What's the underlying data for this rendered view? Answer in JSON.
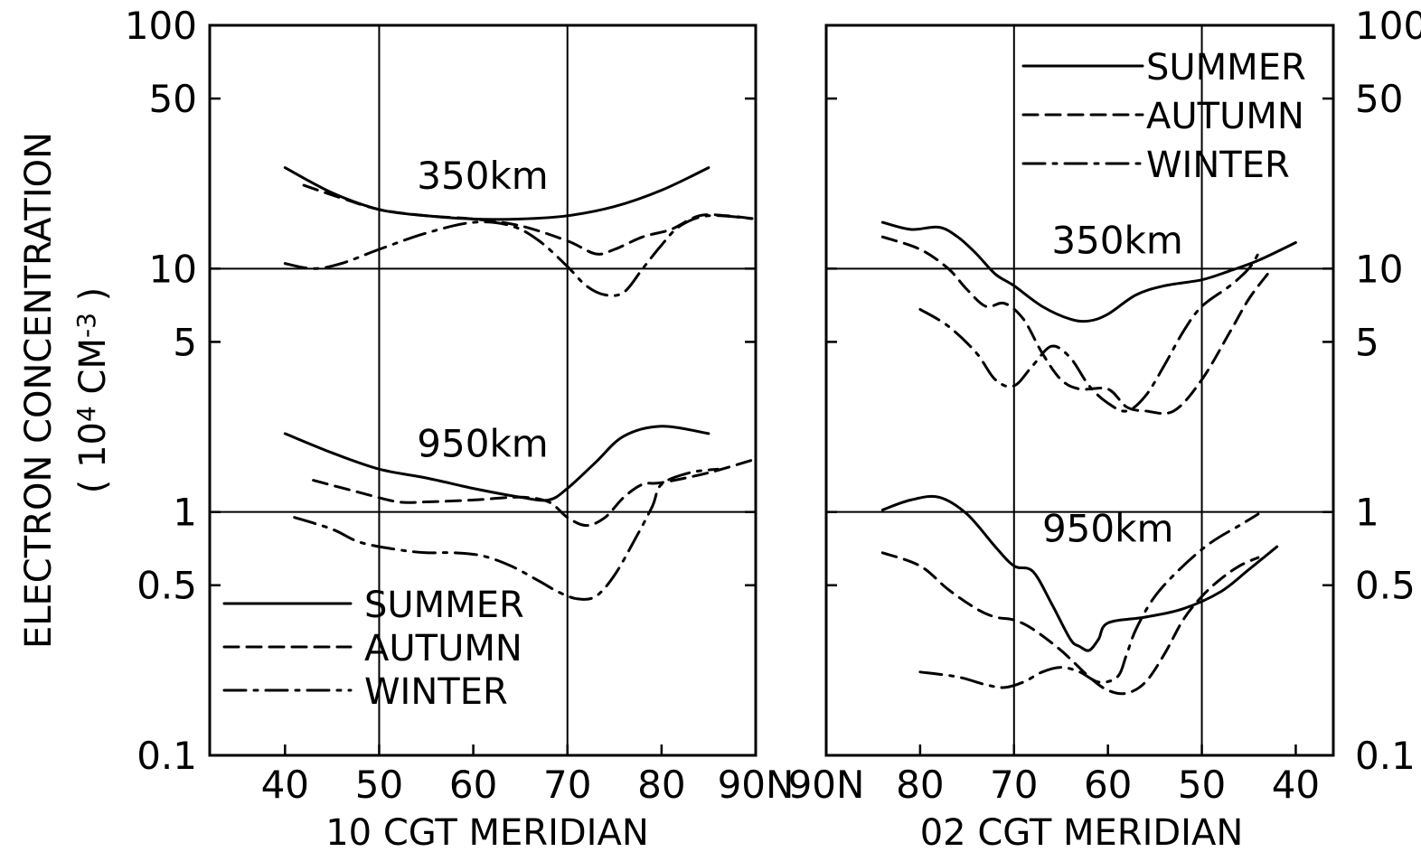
{
  "y_axis_title": [
    "ELECTRON CONCENTRATION",
    "( 10",
    "4",
    " CM",
    "-3",
    " )"
  ],
  "y_ticks": [
    {
      "value": 100,
      "label": "100"
    },
    {
      "value": 50,
      "label": "50"
    },
    {
      "value": 10,
      "label": "10"
    },
    {
      "value": 5,
      "label": "5"
    },
    {
      "value": 1,
      "label": "1"
    },
    {
      "value": 0.5,
      "label": "0.5"
    },
    {
      "value": 0.1,
      "label": "0.1"
    }
  ],
  "series_styles": [
    {
      "name": "SUMMER",
      "dash": "solid"
    },
    {
      "name": "AUTUMN",
      "dash": "dashed"
    },
    {
      "name": "WINTER",
      "dash": "dashdot"
    }
  ],
  "chart_data": [
    {
      "type": "line",
      "xlabel": "10 CGT MERIDIAN",
      "ylabel": "ELECTRON CONCENTRATION (10^4 CM^-3)",
      "yscale": "log",
      "ylim": [
        0.1,
        100
      ],
      "xlim": [
        32,
        90
      ],
      "x_direction": "increasing",
      "x_ticks": [
        {
          "value": 40,
          "label": "40"
        },
        {
          "value": 50,
          "label": "50"
        },
        {
          "value": 60,
          "label": "60"
        },
        {
          "value": 70,
          "label": "70"
        },
        {
          "value": 80,
          "label": "80"
        },
        {
          "value": 90,
          "label": "90N"
        }
      ],
      "vertical_grid": [
        50,
        70
      ],
      "horizontal_grid": [
        10,
        1
      ],
      "legend": {
        "position": "bottom-left",
        "entries": [
          "SUMMER",
          "AUTUMN",
          "WINTER"
        ]
      },
      "annotations": [
        {
          "text": "350km",
          "x": 61,
          "y": 24
        },
        {
          "text": "950km",
          "x": 61,
          "y": 1.9
        }
      ],
      "series": [
        {
          "name": "SUMMER",
          "group": "350km",
          "x": [
            40,
            45,
            50,
            55,
            60,
            65,
            70,
            75,
            80,
            85
          ],
          "y": [
            26,
            20.5,
            17.5,
            16.5,
            16,
            16,
            16.5,
            18,
            21,
            26
          ]
        },
        {
          "name": "AUTUMN",
          "group": "350km",
          "x": [
            42,
            46,
            50,
            55,
            60,
            65,
            70,
            73,
            75,
            78,
            81,
            84,
            87,
            90
          ],
          "y": [
            22,
            19.5,
            17.5,
            16.5,
            16,
            15,
            13,
            11.5,
            12,
            13.5,
            14.5,
            16.5,
            16.5,
            16
          ]
        },
        {
          "name": "WINTER",
          "group": "350km",
          "x": [
            40,
            43,
            46,
            50,
            55,
            60,
            64,
            67,
            70,
            72,
            74,
            76,
            78,
            80,
            82,
            85,
            90
          ],
          "y": [
            10.5,
            10,
            10.5,
            12,
            14,
            15.5,
            15,
            13,
            10.2,
            8.5,
            7.8,
            8,
            10,
            12.5,
            15,
            16.5,
            16
          ]
        },
        {
          "name": "SUMMER",
          "group": "950km",
          "x": [
            40,
            45,
            50,
            55,
            60,
            65,
            68,
            70,
            73,
            76,
            80,
            85
          ],
          "y": [
            2.1,
            1.75,
            1.5,
            1.38,
            1.25,
            1.15,
            1.12,
            1.25,
            1.6,
            2.05,
            2.25,
            2.1
          ]
        },
        {
          "name": "AUTUMN",
          "group": "950km",
          "x": [
            43,
            48,
            52,
            55,
            60,
            65,
            68,
            70,
            72,
            74,
            76,
            78,
            80,
            85,
            90
          ],
          "y": [
            1.35,
            1.2,
            1.1,
            1.1,
            1.12,
            1.15,
            1.1,
            0.95,
            0.88,
            0.95,
            1.15,
            1.3,
            1.32,
            1.45,
            1.65
          ]
        },
        {
          "name": "WINTER",
          "group": "950km",
          "x": [
            41,
            45,
            48,
            52,
            55,
            58,
            61,
            64,
            67,
            69,
            71,
            73,
            75,
            77,
            79,
            80,
            83,
            86
          ],
          "y": [
            0.95,
            0.85,
            0.75,
            0.7,
            0.68,
            0.68,
            0.66,
            0.6,
            0.52,
            0.47,
            0.44,
            0.45,
            0.55,
            0.75,
            1.05,
            1.3,
            1.45,
            1.5
          ]
        }
      ]
    },
    {
      "type": "line",
      "xlabel": "02 CGT MERIDIAN",
      "ylabel": "ELECTRON CONCENTRATION (10^4 CM^-3)",
      "yscale": "log",
      "ylim": [
        0.1,
        100
      ],
      "xlim": [
        90,
        36
      ],
      "x_direction": "decreasing",
      "x_ticks": [
        {
          "value": 90,
          "label": "90N"
        },
        {
          "value": 80,
          "label": "80"
        },
        {
          "value": 70,
          "label": "70"
        },
        {
          "value": 60,
          "label": "60"
        },
        {
          "value": 50,
          "label": "50"
        },
        {
          "value": 40,
          "label": "40"
        }
      ],
      "vertical_grid": [
        70,
        50
      ],
      "horizontal_grid": [
        10,
        1
      ],
      "legend": {
        "position": "top-right",
        "entries": [
          "SUMMER",
          "AUTUMN",
          "WINTER"
        ]
      },
      "annotations": [
        {
          "text": "350km",
          "x": 59,
          "y": 13
        },
        {
          "text": "950km",
          "x": 60,
          "y": 0.85
        }
      ],
      "series": [
        {
          "name": "SUMMER",
          "group": "350km",
          "x": [
            84,
            81,
            78,
            76,
            74,
            72,
            70,
            67,
            64,
            62,
            60,
            57,
            54,
            50,
            47,
            44,
            40
          ],
          "y": [
            15.5,
            14.5,
            14.8,
            13.5,
            11.5,
            9.5,
            8.5,
            7,
            6.2,
            6.1,
            6.5,
            7.8,
            8.5,
            9,
            9.8,
            10.8,
            12.8
          ]
        },
        {
          "name": "AUTUMN",
          "group": "350km",
          "x": [
            84,
            80,
            77,
            75,
            73,
            71,
            69,
            67,
            65,
            63,
            60,
            58,
            56,
            53,
            50,
            47,
            45,
            43
          ],
          "y": [
            13.5,
            12,
            10,
            8.2,
            7,
            7.2,
            6.2,
            4.5,
            3.5,
            3.2,
            3.2,
            2.7,
            2.6,
            2.6,
            3.5,
            5.5,
            7.5,
            9.5
          ]
        },
        {
          "name": "WINTER",
          "group": "350km",
          "x": [
            80,
            77,
            74,
            72,
            70,
            68,
            66,
            64,
            62,
            60,
            58,
            56,
            54,
            52,
            50,
            47,
            45,
            44
          ],
          "y": [
            6.8,
            5.8,
            4.5,
            3.5,
            3.3,
            4,
            4.8,
            4.3,
            3.3,
            2.8,
            2.6,
            3,
            4,
            5.5,
            7,
            8.5,
            10,
            11.5
          ]
        },
        {
          "name": "SUMMER",
          "group": "950km",
          "x": [
            84,
            81,
            78,
            75,
            72,
            70,
            68,
            66,
            64,
            63,
            62,
            61,
            60,
            56,
            52,
            48,
            45,
            42
          ],
          "y": [
            1.02,
            1.12,
            1.15,
            0.98,
            0.72,
            0.6,
            0.57,
            0.42,
            0.3,
            0.28,
            0.27,
            0.3,
            0.35,
            0.37,
            0.4,
            0.47,
            0.58,
            0.72
          ]
        },
        {
          "name": "AUTUMN",
          "group": "950km",
          "x": [
            84,
            80,
            77,
            74,
            72,
            70,
            68,
            65,
            62,
            60,
            58,
            56,
            54,
            52,
            50,
            48,
            46,
            44
          ],
          "y": [
            0.68,
            0.6,
            0.48,
            0.4,
            0.37,
            0.36,
            0.33,
            0.27,
            0.21,
            0.185,
            0.18,
            0.2,
            0.26,
            0.36,
            0.45,
            0.53,
            0.6,
            0.65
          ]
        },
        {
          "name": "WINTER",
          "group": "950km",
          "x": [
            80,
            76,
            73,
            71,
            69,
            67,
            65,
            63,
            61,
            59,
            58,
            57,
            55,
            52,
            49,
            46,
            44
          ],
          "y": [
            0.22,
            0.21,
            0.195,
            0.19,
            0.2,
            0.22,
            0.23,
            0.22,
            0.2,
            0.21,
            0.26,
            0.33,
            0.45,
            0.6,
            0.75,
            0.88,
            0.98
          ]
        }
      ]
    }
  ]
}
